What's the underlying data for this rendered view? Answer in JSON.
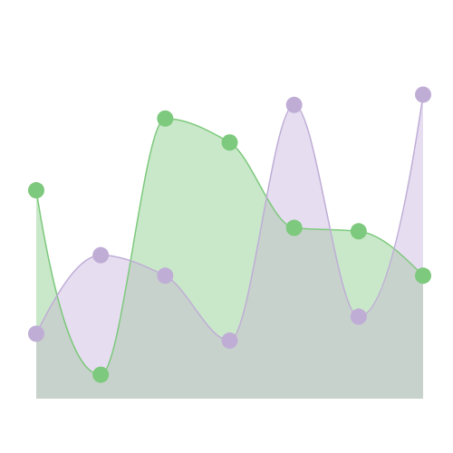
{
  "chart_data": {
    "type": "area",
    "title": "",
    "xlabel": "",
    "ylabel": "",
    "x": [
      1,
      2,
      3,
      4,
      5,
      6,
      7
    ],
    "xlim": [
      1,
      7
    ],
    "ylim": [
      0,
      100
    ],
    "grid": false,
    "legend": "none",
    "series": [
      {
        "color": "#7dc97d",
        "fill": "#c9e8c9",
        "values": [
          61,
          7,
          82,
          75,
          50,
          49,
          36
        ]
      },
      {
        "color": "#bfadd6",
        "fill": "#e6ddf0",
        "values": [
          19,
          42,
          36,
          17,
          86,
          24,
          89
        ]
      }
    ],
    "overlap_fill": "#c8d2cc"
  }
}
